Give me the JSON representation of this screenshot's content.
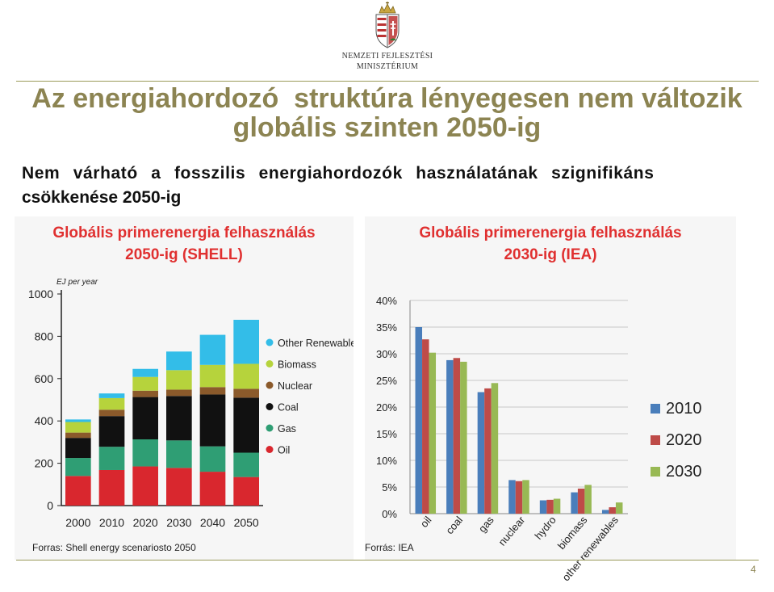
{
  "header": {
    "ministry_line1": "NEMZETI FEJLESZTÉSI",
    "ministry_line2": "MINISZTÉRIUM"
  },
  "title": {
    "line1": "Az energiahordozó  struktúra lényegesen nem változik",
    "line2": "globális szinten 2050-ig"
  },
  "subtitle": {
    "line1": "Nem várható a fosszilis energiahordozók használatának szignifikáns",
    "line2": "csökkenése 2050-ig"
  },
  "shell_panel": {
    "title_line1": "Globális primerenergia felhasználás",
    "title_line2": "2050-ig (SHELL)",
    "source": "Forras: Shell energy scenariosto 2050"
  },
  "iea_panel": {
    "title_line1": "Globális primerenergia felhasználás",
    "title_line2": "2030-ig (IEA)",
    "source": "Forrás: IEA"
  },
  "page_number": "4",
  "chart_data": [
    {
      "type": "bar",
      "stacked": true,
      "ylabel": "EJ per year",
      "ylim": [
        0,
        1000
      ],
      "yticks": [
        "0",
        "200",
        "400",
        "600",
        "800",
        "1000"
      ],
      "categories": [
        "2000",
        "2010",
        "2020",
        "2030",
        "2040",
        "2050"
      ],
      "series": [
        {
          "name": "Oil",
          "color": "#d9272e",
          "values": [
            140,
            168,
            185,
            178,
            160,
            135
          ]
        },
        {
          "name": "Gas",
          "color": "#2f9e74",
          "values": [
            85,
            110,
            128,
            130,
            120,
            115
          ]
        },
        {
          "name": "Coal",
          "color": "#111111",
          "values": [
            95,
            145,
            200,
            210,
            245,
            260
          ]
        },
        {
          "name": "Nuclear",
          "color": "#8b5a2b",
          "values": [
            25,
            30,
            30,
            30,
            35,
            42
          ]
        },
        {
          "name": "Biomass",
          "color": "#b6d33c",
          "values": [
            50,
            55,
            65,
            92,
            105,
            118
          ]
        },
        {
          "name": "Other Renewables",
          "color": "#33bde8",
          "values": [
            12,
            22,
            38,
            88,
            142,
            208
          ]
        }
      ],
      "legend_position": "right",
      "grid": false
    },
    {
      "type": "bar",
      "categories": [
        "oil",
        "coal",
        "gas",
        "nuclear",
        "hydro",
        "biomass",
        "other renewables"
      ],
      "ylim": [
        0,
        40
      ],
      "yticks": [
        "0%",
        "5%",
        "10%",
        "15%",
        "20%",
        "25%",
        "30%",
        "35%",
        "40%"
      ],
      "series": [
        {
          "name": "2010",
          "color": "#4a7ebb",
          "values": [
            35,
            28.8,
            22.8,
            6.3,
            2.5,
            4.0,
            0.7
          ]
        },
        {
          "name": "2020",
          "color": "#be4b48",
          "values": [
            32.7,
            29.2,
            23.5,
            6.1,
            2.6,
            4.7,
            1.2
          ]
        },
        {
          "name": "2030",
          "color": "#98b954",
          "values": [
            30.2,
            28.5,
            24.5,
            6.3,
            2.8,
            5.4,
            2.1
          ]
        }
      ],
      "legend_position": "right",
      "grid": "horizontal"
    }
  ]
}
